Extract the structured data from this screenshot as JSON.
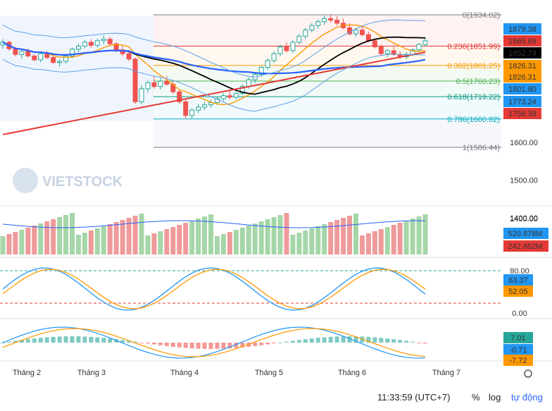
{
  "chart_data": {
    "type": "candlestick",
    "watermark": "VIETSTOCK",
    "price_axis": {
      "ticks": [
        1600.0,
        1500.0,
        1400.0
      ]
    },
    "fibonacci": [
      {
        "level": "0",
        "price": 1934.02,
        "color": "#787b86"
      },
      {
        "level": "0.236",
        "price": 1851.99,
        "color": "#e53935"
      },
      {
        "level": "0.382",
        "price": 1801.25,
        "color": "#ff9800"
      },
      {
        "level": "0.5",
        "price": 1760.23,
        "color": "#4caf50"
      },
      {
        "level": "0.618",
        "price": 1719.22,
        "color": "#089981"
      },
      {
        "level": "0.786",
        "price": 1660.82,
        "color": "#00acc1"
      },
      {
        "level": "1",
        "price": 1586.44,
        "color": "#787b86"
      }
    ],
    "price_badges": [
      {
        "value": "1879.38",
        "color": "#2196f3"
      },
      {
        "value": "1865.69",
        "color": "#e53935"
      },
      {
        "value": "1852.79",
        "color": "#000000"
      },
      {
        "value": "1826.31",
        "color": "#ff9800"
      },
      {
        "value": "1826.31",
        "color": "#ff9800"
      },
      {
        "value": "1801.80",
        "color": "#2196f3"
      },
      {
        "value": "1773.24",
        "color": "#2196f3"
      },
      {
        "value": "1756.38",
        "color": "#e53935"
      }
    ],
    "volume": {
      "badges": [
        {
          "value": "520.878M",
          "color": "#2196f3"
        },
        {
          "value": "242.852M",
          "color": "#e53935"
        }
      ]
    },
    "stochastic": {
      "ticks": [
        "80.00",
        "0.00"
      ],
      "badges": [
        {
          "value": "63.37",
          "color": "#2196f3"
        },
        {
          "value": "52.05",
          "color": "#ff9800"
        }
      ]
    },
    "macd": {
      "badges": [
        {
          "value": "7.01",
          "color": "#26a69a"
        },
        {
          "value": "-0.71",
          "color": "#2196f3"
        },
        {
          "value": "-7.72",
          "color": "#ff9800"
        }
      ]
    },
    "x_labels": [
      "Tháng 2",
      "Tháng 3",
      "Tháng 4",
      "Tháng 5",
      "Tháng 6",
      "Tháng 7"
    ],
    "candles": [
      [
        1855,
        1870,
        1845,
        1862
      ],
      [
        1862,
        1866,
        1840,
        1845
      ],
      [
        1845,
        1850,
        1825,
        1830
      ],
      [
        1830,
        1842,
        1820,
        1838
      ],
      [
        1838,
        1845,
        1822,
        1826
      ],
      [
        1826,
        1830,
        1812,
        1816
      ],
      [
        1816,
        1836,
        1810,
        1832
      ],
      [
        1832,
        1840,
        1818,
        1822
      ],
      [
        1822,
        1828,
        1805,
        1809
      ],
      [
        1809,
        1816,
        1798,
        1812
      ],
      [
        1812,
        1830,
        1806,
        1826
      ],
      [
        1826,
        1848,
        1820,
        1844
      ],
      [
        1844,
        1858,
        1836,
        1852
      ],
      [
        1852,
        1868,
        1846,
        1862
      ],
      [
        1862,
        1870,
        1848,
        1854
      ],
      [
        1854,
        1872,
        1848,
        1866
      ],
      [
        1866,
        1880,
        1856,
        1870
      ],
      [
        1870,
        1876,
        1852,
        1858
      ],
      [
        1858,
        1862,
        1836,
        1842
      ],
      [
        1842,
        1852,
        1826,
        1832
      ],
      [
        1832,
        1836,
        1812,
        1818
      ],
      [
        1818,
        1822,
        1700,
        1706
      ],
      [
        1706,
        1750,
        1700,
        1740
      ],
      [
        1740,
        1762,
        1730,
        1756
      ],
      [
        1756,
        1772,
        1740,
        1746
      ],
      [
        1746,
        1768,
        1738,
        1760
      ],
      [
        1760,
        1774,
        1748,
        1752
      ],
      [
        1752,
        1760,
        1726,
        1732
      ],
      [
        1732,
        1736,
        1700,
        1706
      ],
      [
        1706,
        1712,
        1662,
        1670
      ],
      [
        1670,
        1690,
        1662,
        1684
      ],
      [
        1684,
        1700,
        1676,
        1692
      ],
      [
        1692,
        1706,
        1684,
        1698
      ],
      [
        1698,
        1712,
        1690,
        1704
      ],
      [
        1704,
        1720,
        1698,
        1714
      ],
      [
        1714,
        1728,
        1708,
        1722
      ],
      [
        1722,
        1734,
        1712,
        1718
      ],
      [
        1718,
        1732,
        1712,
        1728
      ],
      [
        1728,
        1752,
        1724,
        1746
      ],
      [
        1746,
        1770,
        1740,
        1764
      ],
      [
        1764,
        1784,
        1756,
        1778
      ],
      [
        1778,
        1800,
        1772,
        1796
      ],
      [
        1796,
        1820,
        1790,
        1814
      ],
      [
        1814,
        1838,
        1808,
        1832
      ],
      [
        1832,
        1856,
        1826,
        1850
      ],
      [
        1850,
        1862,
        1834,
        1840
      ],
      [
        1840,
        1868,
        1834,
        1862
      ],
      [
        1862,
        1884,
        1856,
        1878
      ],
      [
        1878,
        1900,
        1870,
        1894
      ],
      [
        1894,
        1912,
        1888,
        1906
      ],
      [
        1906,
        1922,
        1898,
        1916
      ],
      [
        1916,
        1932,
        1908,
        1924
      ],
      [
        1924,
        1934,
        1914,
        1920
      ],
      [
        1920,
        1930,
        1906,
        1912
      ],
      [
        1912,
        1924,
        1896,
        1900
      ],
      [
        1900,
        1912,
        1880,
        1884
      ],
      [
        1884,
        1900,
        1876,
        1894
      ],
      [
        1894,
        1906,
        1878,
        1882
      ],
      [
        1882,
        1890,
        1862,
        1866
      ],
      [
        1866,
        1872,
        1846,
        1850
      ],
      [
        1850,
        1856,
        1826,
        1832
      ],
      [
        1832,
        1844,
        1822,
        1840
      ],
      [
        1840,
        1850,
        1826,
        1830
      ],
      [
        1830,
        1838,
        1818,
        1824
      ],
      [
        1824,
        1836,
        1818,
        1830
      ],
      [
        1830,
        1846,
        1826,
        1842
      ],
      [
        1842,
        1860,
        1838,
        1856
      ],
      [
        1856,
        1876,
        1850,
        1866
      ]
    ]
  },
  "footer": {
    "time": "11:33:59 (UTC+7)",
    "percent": "%",
    "log": "log",
    "auto": "tự động"
  }
}
